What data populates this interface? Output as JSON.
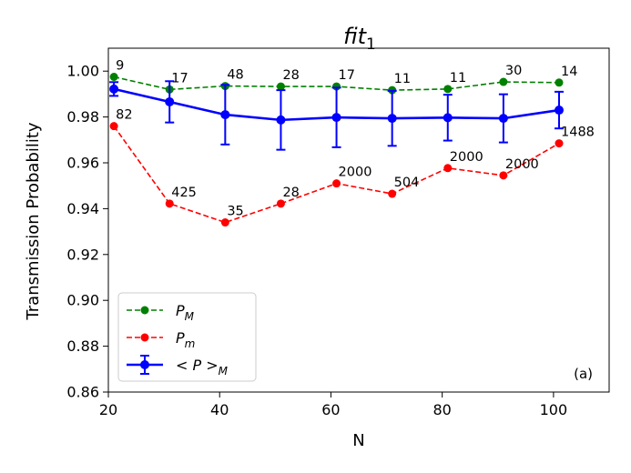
{
  "chart_data": {
    "type": "line",
    "title": "fit",
    "title_sub": "1",
    "xlabel": "N",
    "ylabel": "Transmission Probability",
    "xlim": [
      20,
      110
    ],
    "ylim": [
      0.86,
      1.01
    ],
    "xticks": [
      20,
      40,
      60,
      80,
      100
    ],
    "yticks": [
      0.86,
      0.88,
      0.9,
      0.92,
      0.94,
      0.96,
      0.98,
      1.0
    ],
    "xtick_labels": [
      "20",
      "40",
      "60",
      "80",
      "100"
    ],
    "ytick_labels": [
      "0.86",
      "0.88",
      "0.90",
      "0.92",
      "0.94",
      "0.96",
      "0.98",
      "1.00"
    ],
    "panel_label": "(a)",
    "legend_position": "lower-left",
    "x": [
      21,
      31,
      41,
      51,
      61,
      71,
      81,
      91,
      101
    ],
    "series": [
      {
        "name": "P_M",
        "legend_main": "P",
        "legend_sub": "M",
        "color": "#008000",
        "style": "dashed",
        "values": [
          0.9975,
          0.992,
          0.9935,
          0.9933,
          0.9933,
          0.9917,
          0.9922,
          0.9953,
          0.995
        ],
        "labels": [
          "9",
          "17",
          "48",
          "28",
          "17",
          "11",
          "11",
          "30",
          "14"
        ]
      },
      {
        "name": "P_m",
        "legend_main": "P",
        "legend_sub": "m",
        "color": "#ff0000",
        "style": "dashed",
        "values": [
          0.976,
          0.9422,
          0.934,
          0.9422,
          0.951,
          0.9465,
          0.9577,
          0.9545,
          0.9685
        ],
        "labels": [
          "82",
          "425",
          "35",
          "28",
          "2000",
          "504",
          "2000",
          "2000",
          "1488"
        ]
      },
      {
        "name": "<P>_M",
        "legend_main": "< P >",
        "legend_sub": "M",
        "color": "#0000ff",
        "style": "solid",
        "values": [
          0.9922,
          0.9866,
          0.981,
          0.9787,
          0.9798,
          0.9794,
          0.9797,
          0.9794,
          0.983
        ],
        "errors": [
          0.003,
          0.009,
          0.013,
          0.013,
          0.013,
          0.012,
          0.01,
          0.0105,
          0.008
        ]
      }
    ]
  }
}
